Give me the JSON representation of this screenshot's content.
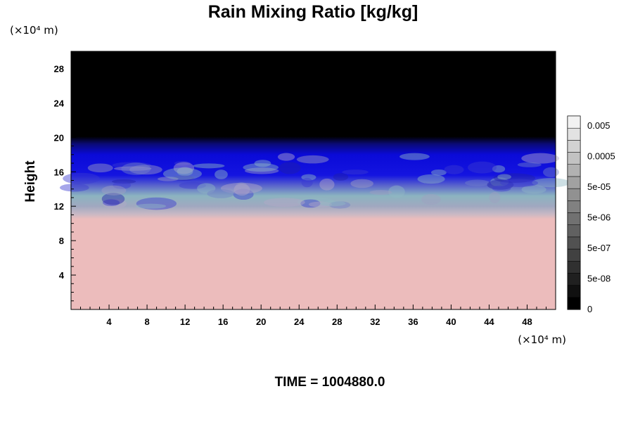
{
  "chart_data": {
    "type": "heatmap",
    "title": "Rain Mixing Ratio [kg/kg]",
    "ylabel": "Height",
    "x_unit": "(×10⁴ m)",
    "y_unit": "(×10⁴ m)",
    "time_label": "TIME = 1004880.0",
    "xlim": [
      0,
      51
    ],
    "ylim": [
      0,
      30
    ],
    "x_ticks": [
      "4",
      "8",
      "12",
      "16",
      "20",
      "24",
      "28",
      "32",
      "36",
      "40",
      "44",
      "48"
    ],
    "y_ticks": [
      "4",
      "8",
      "12",
      "16",
      "20",
      "24",
      "28"
    ],
    "colorbar_labels": [
      "0.005",
      "0.0005",
      "5e-05",
      "5e-06",
      "5e-07",
      "5e-08",
      "0"
    ],
    "layers": [
      {
        "region": "lower",
        "y_range": [
          0,
          11
        ],
        "color": "#ecbcbc"
      },
      {
        "region": "transition",
        "y_range": [
          11,
          15
        ],
        "color": "#9ca6bc"
      },
      {
        "region": "upper",
        "y_range": [
          15,
          19.5
        ],
        "color": "#0a0ad8"
      },
      {
        "region": "top",
        "y_range": [
          19.5,
          30
        ],
        "color": "#000000"
      }
    ]
  }
}
